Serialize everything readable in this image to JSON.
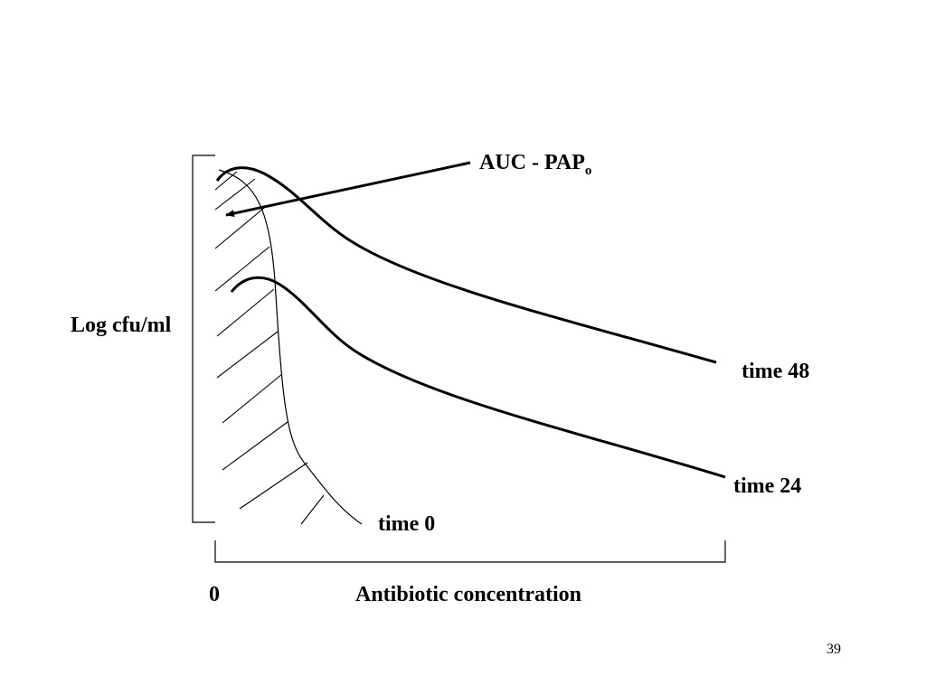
{
  "labels": {
    "auc_main": "AUC - PAP",
    "auc_subscript": "o",
    "y_axis": "Log cfu/ml",
    "x_origin": "0",
    "x_axis": "Antibiotic concentration",
    "curve_time_0": "time 0",
    "curve_time_24": "time 24",
    "curve_time_48": "time 48"
  },
  "page_number": "39",
  "colors": {
    "ink": "#000000",
    "background": "#ffffff"
  }
}
